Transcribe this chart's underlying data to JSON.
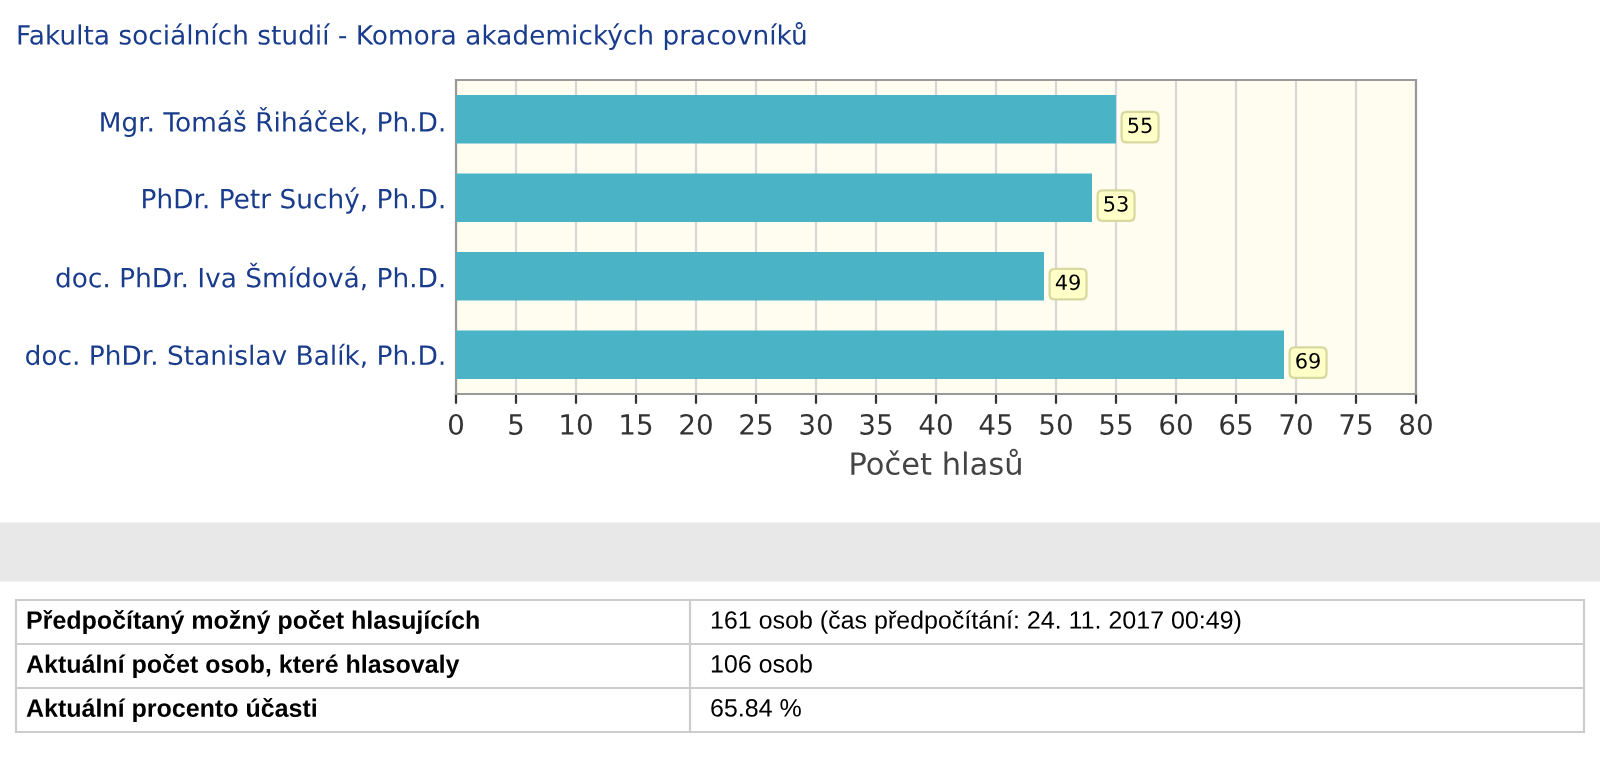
{
  "chart_data": {
    "type": "bar",
    "orientation": "horizontal",
    "title": "Fakulta sociálních studií - Komora akademických pracovníků",
    "categories": [
      "Mgr. Tomáš Řiháček, Ph.D.",
      "PhDr. Petr Suchý, Ph.D.",
      "doc. PhDr. Iva Šmídová, Ph.D.",
      "doc. PhDr. Stanislav Balík, Ph.D."
    ],
    "values": [
      55,
      53,
      49,
      69
    ],
    "color": "#4bb3c6",
    "data_labels": true,
    "xlim": [
      0,
      80
    ],
    "xticks": [
      0,
      5,
      10,
      15,
      20,
      25,
      30,
      35,
      40,
      45,
      50,
      55,
      60,
      65,
      70,
      75,
      80
    ],
    "grid": "x",
    "xlabel": "Počet hlasů",
    "annotations": [
      "Předpočítaný možný počet hlasujících",
      "161 osob (čas předpočítání: 24. 11. 2017 00:49)",
      "Aktuální počet osob, které hlasovaly",
      "106 osob",
      "Aktuální procento účasti",
      "65.84 %"
    ]
  }
}
